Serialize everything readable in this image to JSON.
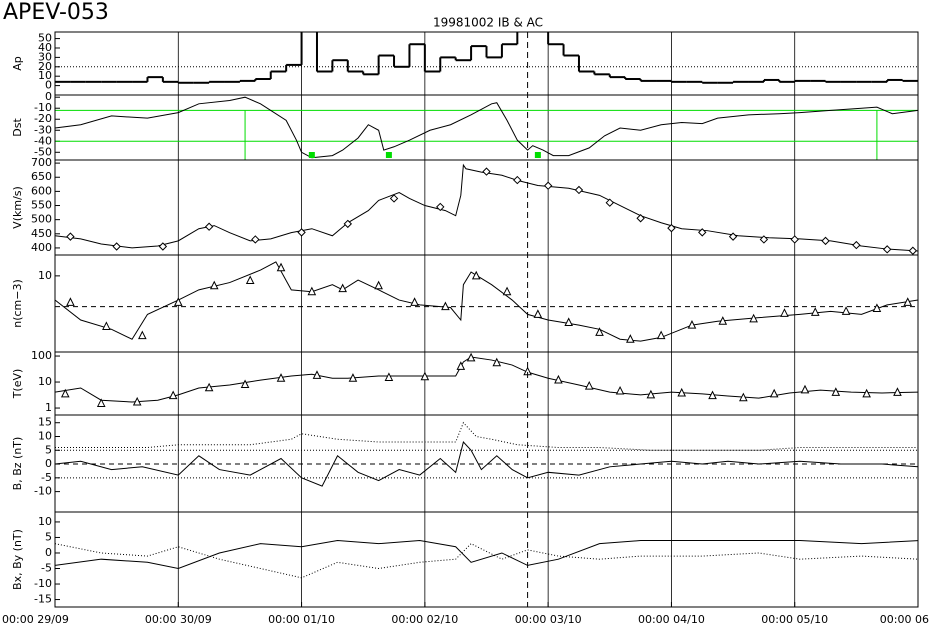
{
  "page_title": "APEV-053",
  "event_line_x": 92,
  "chart_data": [
    {
      "type": "line",
      "title": "19981002 IB & AC",
      "ylabel": "Ap",
      "ylim": [
        -10,
        57
      ],
      "yticks": [
        0,
        10,
        20,
        30,
        40,
        50
      ],
      "log": false,
      "xlim": [
        0,
        168
      ],
      "hlines": [
        {
          "value": 20,
          "color": "#000000",
          "style": "dotted"
        }
      ],
      "series": [
        {
          "color": "#000000",
          "width": 2,
          "step": true,
          "x": [
            0,
            3,
            6,
            9,
            12,
            15,
            18,
            21,
            24,
            27,
            30,
            33,
            36,
            39,
            42,
            45,
            48,
            51,
            54,
            57,
            60,
            63,
            66,
            69,
            72,
            75,
            78,
            81,
            84,
            87,
            90,
            93,
            96,
            99,
            102,
            105,
            108,
            111,
            114,
            117,
            120,
            123,
            126,
            129,
            132,
            135,
            138,
            141,
            144,
            147,
            150,
            153,
            156,
            159,
            162,
            165
          ],
          "values": [
            4,
            4,
            4,
            4,
            4,
            4,
            9,
            4,
            3,
            3,
            4,
            4,
            5,
            7,
            15,
            22,
            60,
            15,
            27,
            15,
            12,
            32,
            20,
            44,
            15,
            30,
            27,
            42,
            30,
            44,
            60,
            60,
            44,
            32,
            15,
            12,
            9,
            7,
            5,
            5,
            4,
            4,
            3,
            3,
            4,
            4,
            6,
            4,
            5,
            5,
            4,
            4,
            4,
            4,
            6,
            5
          ]
        }
      ]
    },
    {
      "type": "line",
      "ylabel": "Dst",
      "ylim": [
        -57,
        2
      ],
      "yticks": [
        0,
        -10,
        -20,
        -30,
        -40,
        -50
      ],
      "log": false,
      "xlim": [
        0,
        168
      ],
      "hlines": [
        {
          "value": -12,
          "color": "#00dd00",
          "style": "solid"
        },
        {
          "value": -40,
          "color": "#00dd00",
          "style": "solid"
        }
      ],
      "vlines": {
        "x": [
          37,
          160
        ],
        "color": "#00dd00"
      },
      "event_markers": {
        "x": [
          50,
          65,
          94
        ],
        "color": "#00dd00"
      },
      "series": [
        {
          "color": "#000000",
          "width": 1,
          "x": [
            0,
            5,
            11,
            18,
            24,
            28,
            34,
            37,
            40,
            45,
            47,
            48,
            50,
            54,
            56,
            59,
            61,
            63,
            64,
            66,
            69,
            73,
            77,
            81,
            85,
            86,
            88,
            90,
            92,
            93,
            95,
            97,
            100,
            104,
            107,
            110,
            114,
            118,
            122,
            126,
            129,
            135,
            141,
            145,
            151,
            157,
            160,
            163,
            168
          ],
          "values": [
            -28,
            -25,
            -17,
            -19,
            -14,
            -6,
            -3,
            0,
            -6,
            -21,
            -39,
            -50,
            -55,
            -53,
            -48,
            -37,
            -25,
            -30,
            -48,
            -45,
            -39,
            -30,
            -25,
            -16,
            -6,
            -5,
            -21,
            -39,
            -48,
            -44,
            -48,
            -53,
            -53,
            -46,
            -35,
            -28,
            -30,
            -25,
            -23,
            -24,
            -19,
            -16,
            -15,
            -14,
            -12,
            -10,
            -9,
            -15,
            -12
          ]
        }
      ]
    },
    {
      "type": "line",
      "ylabel": "V(km/s)",
      "ylim": [
        375,
        711
      ],
      "yticks": [
        400,
        450,
        500,
        550,
        600,
        650,
        700
      ],
      "log": false,
      "xlim": [
        0,
        168
      ],
      "hlines": [],
      "series": [
        {
          "color": "#000000",
          "width": 1,
          "x": [
            0,
            5,
            9,
            15,
            20,
            24,
            28,
            31,
            34,
            38,
            42,
            46,
            50,
            54,
            57,
            61,
            63,
            67,
            69,
            72,
            76,
            78,
            79,
            79.5,
            80,
            83,
            87,
            90,
            94,
            100,
            106,
            110,
            114,
            118,
            122,
            127,
            133,
            139,
            145,
            151,
            157,
            162,
            168
          ],
          "values": [
            443,
            432,
            414,
            400,
            407,
            425,
            468,
            479,
            454,
            425,
            432,
            454,
            468,
            443,
            489,
            532,
            568,
            596,
            575,
            550,
            532,
            514,
            586,
            693,
            680,
            668,
            657,
            639,
            621,
            611,
            586,
            550,
            514,
            489,
            468,
            461,
            443,
            436,
            432,
            425,
            407,
            396,
            389
          ]
        },
        {
          "color": "#000000",
          "marker": "diamond",
          "x": [
            3,
            12,
            21,
            30,
            39,
            48,
            57,
            66,
            75,
            84,
            90,
            96,
            102,
            108,
            114,
            120,
            126,
            132,
            138,
            144,
            150,
            156,
            162,
            167
          ],
          "values": [
            440,
            405,
            405,
            475,
            430,
            455,
            485,
            575,
            545,
            670,
            640,
            620,
            605,
            560,
            505,
            470,
            455,
            440,
            430,
            430,
            425,
            410,
            395,
            390
          ]
        }
      ]
    },
    {
      "type": "line",
      "ylabel": "n(cm−3)",
      "ylim": [
        1.8,
        16
      ],
      "yticks": [
        10
      ],
      "log": true,
      "xlim": [
        0,
        168
      ],
      "hlines": [
        {
          "value": 5,
          "color": "#000000",
          "style": "dashed"
        }
      ],
      "series": [
        {
          "color": "#000000",
          "width": 1,
          "x": [
            0,
            5,
            11,
            15,
            18,
            24,
            28,
            34,
            40,
            43,
            46,
            50,
            54,
            56,
            59,
            63,
            67,
            71,
            77,
            79,
            79.5,
            81,
            85,
            89,
            92,
            96,
            102,
            106,
            110,
            114,
            118,
            124,
            129,
            137,
            145,
            151,
            157,
            162,
            168
          ],
          "values": [
            5.8,
            3.7,
            3.0,
            2.4,
            4.2,
            5.8,
            7.3,
            8.6,
            11.4,
            13.7,
            7.3,
            7.0,
            8.2,
            7.3,
            9.1,
            7.3,
            5.8,
            5.2,
            4.9,
            3.7,
            8.2,
            10.9,
            8.2,
            5.8,
            4.2,
            3.7,
            3.3,
            3.0,
            2.4,
            2.3,
            2.5,
            3.3,
            3.6,
            3.9,
            4.2,
            4.5,
            4.2,
            5.2,
            5.8
          ]
        },
        {
          "color": "#000000",
          "marker": "triangle",
          "x": [
            3,
            10,
            17,
            24,
            31,
            38,
            44,
            50,
            56,
            63,
            70,
            76,
            82,
            88,
            94,
            100,
            106,
            112,
            118,
            124,
            130,
            136,
            142,
            148,
            154,
            160,
            166
          ],
          "values": [
            5.5,
            3.2,
            2.6,
            5.5,
            8,
            9,
            12,
            7,
            7.5,
            8,
            5.5,
            5,
            10,
            7,
            4.2,
            3.5,
            2.8,
            2.4,
            2.6,
            3.3,
            3.6,
            3.8,
            4.3,
            4.4,
            4.5,
            4.8,
            5.5
          ]
        }
      ]
    },
    {
      "type": "line",
      "ylabel": "T(eV)",
      "ylim": [
        0.54,
        143
      ],
      "yticks": [
        1,
        10,
        100
      ],
      "log": true,
      "xlim": [
        0,
        168
      ],
      "hlines": [],
      "series": [
        {
          "color": "#000000",
          "width": 1,
          "x": [
            0,
            5,
            9,
            15,
            20,
            24,
            28,
            34,
            40,
            46,
            50,
            54,
            57,
            63,
            69,
            75,
            78,
            79.5,
            81,
            85,
            89,
            92,
            96,
            102,
            108,
            114,
            120,
            126,
            131,
            137,
            143,
            149,
            155,
            161,
            168
          ],
          "values": [
            4.1,
            5.9,
            2.0,
            1.7,
            2.0,
            3.2,
            5.9,
            7.7,
            11.9,
            17,
            20,
            14,
            14,
            17,
            17,
            17,
            17,
            59,
            92,
            70,
            45,
            24,
            14,
            7.7,
            4.1,
            3.2,
            4.1,
            3.5,
            2.9,
            2.4,
            3.8,
            4.9,
            4.1,
            3.8,
            4.1
          ]
        },
        {
          "color": "#000000",
          "marker": "triangle",
          "x": [
            2,
            9,
            16,
            23,
            30,
            37,
            44,
            51,
            58,
            65,
            72,
            79,
            81,
            86,
            92,
            98,
            104,
            110,
            116,
            122,
            128,
            134,
            140,
            146,
            152,
            158,
            164
          ],
          "values": [
            3.5,
            1.5,
            1.7,
            3,
            6,
            8,
            14,
            18,
            14,
            15,
            16,
            40,
            85,
            55,
            25,
            12,
            7,
            4.5,
            3.2,
            3.8,
            3,
            2.5,
            3.5,
            5,
            4,
            3.5,
            4
          ]
        }
      ]
    },
    {
      "type": "line",
      "ylabel": "B, Bz (nT)",
      "ylim": [
        -17.4,
        17.8
      ],
      "yticks": [
        -10,
        -5,
        0,
        5,
        10,
        15
      ],
      "log": false,
      "xlim": [
        0,
        168
      ],
      "hlines": [
        {
          "value": 5,
          "color": "#000000",
          "style": "dotted"
        },
        {
          "value": -5,
          "color": "#000000",
          "style": "dotted"
        },
        {
          "value": 0,
          "color": "#000000",
          "style": "dashed"
        }
      ],
      "series": [
        {
          "color": "#000000",
          "width": 1,
          "dash": "dotted",
          "x": [
            0,
            18,
            24,
            38,
            46,
            48,
            55,
            63,
            71,
            78,
            79.5,
            82,
            85,
            90,
            98,
            106,
            116,
            126,
            137,
            145,
            157,
            168
          ],
          "values": [
            6,
            6,
            7,
            7,
            9,
            11,
            9,
            8,
            8,
            8,
            15,
            10,
            9,
            7,
            6,
            6,
            5,
            5,
            5,
            6,
            6,
            6
          ]
        },
        {
          "color": "#000000",
          "width": 1,
          "x": [
            0,
            5,
            11,
            17,
            24,
            28,
            32,
            38,
            44,
            48,
            52,
            55,
            59,
            63,
            67,
            71,
            75,
            78,
            79.5,
            81,
            83,
            86,
            89,
            92,
            96,
            102,
            108,
            114,
            120,
            126,
            131,
            137,
            145,
            153,
            161,
            168
          ],
          "values": [
            0,
            1,
            -2,
            -1,
            -4,
            3,
            -2,
            -4,
            2,
            -5,
            -8,
            3,
            -3,
            -6,
            -2,
            -4,
            2,
            -3,
            8,
            5,
            -2,
            3,
            -2,
            -5,
            -3,
            -4,
            -1,
            0,
            1,
            0,
            1,
            0,
            1,
            0,
            0,
            -1
          ]
        }
      ]
    },
    {
      "type": "line",
      "ylabel": "Bx, By (nT)",
      "ylim": [
        -17.4,
        13.2
      ],
      "yticks": [
        -15,
        -10,
        -5,
        0,
        5,
        10
      ],
      "log": false,
      "xlim": [
        0,
        168
      ],
      "hlines": [],
      "xticks": [
        {
          "value": 0,
          "label": "00:00 29/09"
        },
        {
          "value": 24,
          "label": "00:00 30/09"
        },
        {
          "value": 48,
          "label": "00:00 01/10"
        },
        {
          "value": 72,
          "label": "00:00 02/10"
        },
        {
          "value": 96,
          "label": "00:00 03/10"
        },
        {
          "value": 120,
          "label": "00:00 04/10"
        },
        {
          "value": 144,
          "label": "00:00 05/10"
        },
        {
          "value": 168,
          "label": "00:00 06"
        }
      ],
      "series": [
        {
          "color": "#000000",
          "width": 1,
          "x": [
            0,
            9,
            18,
            24,
            32,
            40,
            48,
            55,
            63,
            71,
            78,
            81,
            87,
            92,
            98,
            106,
            114,
            126,
            137,
            145,
            157,
            168
          ],
          "values": [
            -4,
            -2,
            -3,
            -5,
            0,
            3,
            2,
            4,
            3,
            4,
            2,
            -3,
            0,
            -4,
            -2,
            3,
            4,
            4,
            4,
            4,
            3,
            4
          ]
        },
        {
          "color": "#000000",
          "width": 1,
          "dash": "dotted",
          "x": [
            0,
            9,
            18,
            24,
            32,
            40,
            48,
            55,
            63,
            71,
            78,
            81,
            87,
            92,
            98,
            106,
            114,
            126,
            137,
            145,
            157,
            168
          ],
          "values": [
            3,
            0,
            -1,
            2,
            -2,
            -5,
            -8,
            -3,
            -5,
            -3,
            -2,
            3,
            -2,
            1,
            -1,
            -2,
            -1,
            -1,
            0,
            -2,
            -1,
            -2
          ]
        }
      ]
    }
  ]
}
